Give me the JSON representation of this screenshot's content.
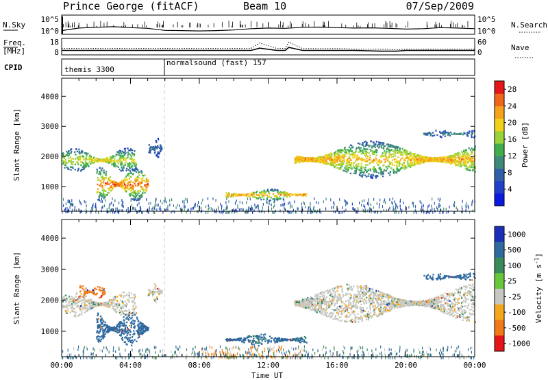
{
  "header": {
    "station": "Prince George (fitACF)",
    "beam": "Beam 10",
    "date": "07/Sep/2009"
  },
  "nsky_panel": {
    "left_label": "N.Sky",
    "right_label": "N.Search",
    "left_ticks": [
      "10^5",
      "10^0"
    ],
    "right_ticks": [
      "10^5",
      "10^0"
    ]
  },
  "freq_panel": {
    "left_label_1": "Freq.",
    "left_label_2": "[MHz]",
    "right_label": "Nave",
    "left_ticks": [
      "18",
      "8"
    ],
    "right_ticks": [
      "60",
      "0"
    ]
  },
  "cpid_panel": {
    "label": "CPID",
    "programs": [
      "themis 3300",
      "normalsound (fast) 157"
    ]
  },
  "power_panel": {
    "ylabel": "Slant Range [km]",
    "colorbar_label": "Power [dB]",
    "colorbar_ticks": [
      "28",
      "24",
      "20",
      "16",
      "12",
      "8",
      "4"
    ]
  },
  "velocity_panel": {
    "ylabel": "Slant Range [km]",
    "colorbar_label": "Velocity  [m s^-1]",
    "colorbar_ticks": [
      "1000",
      "500",
      "100",
      "25",
      "-25",
      "-100",
      "-500",
      "-1000"
    ]
  },
  "xaxis": {
    "label": "Time UT",
    "ticks": [
      "00:00",
      "04:00",
      "08:00",
      "12:00",
      "16:00",
      "20:00",
      "00:00"
    ]
  },
  "chart_data": [
    {
      "type": "heatmap",
      "title": "Power",
      "xlabel": "Time UT",
      "ylabel": "Slant Range [km]",
      "xlim_hours": [
        0,
        24
      ],
      "ylim_km": [
        180,
        4600
      ],
      "y_ticks": [
        1000,
        2000,
        3000,
        4000
      ],
      "colorbar": {
        "label": "Power [dB]",
        "range": [
          0,
          30
        ],
        "ticks": [
          4,
          8,
          12,
          16,
          20,
          24,
          28
        ]
      },
      "mode_change_hour": 6.0,
      "echo_regions": [
        {
          "t_start": 0.0,
          "t_end": 4.3,
          "range_start_km": 1500,
          "range_end_km": 2300,
          "peak_db": 22
        },
        {
          "t_start": 2.0,
          "t_end": 5.0,
          "range_start_km": 550,
          "range_end_km": 1650,
          "peak_db": 29
        },
        {
          "t_start": 5.0,
          "t_end": 5.8,
          "range_start_km": 1950,
          "range_end_km": 2650,
          "peak_db": 10
        },
        {
          "t_start": 9.5,
          "t_end": 14.2,
          "range_start_km": 550,
          "range_end_km": 950,
          "peak_db": 26
        },
        {
          "t_start": 13.5,
          "t_end": 24.0,
          "range_start_km": 1300,
          "range_end_km": 2550,
          "peak_db": 25
        },
        {
          "t_start": 21.0,
          "t_end": 24.0,
          "range_start_km": 2650,
          "range_end_km": 2900,
          "peak_db": 12
        },
        {
          "t_start": 0.0,
          "t_end": 24.0,
          "range_start_km": 180,
          "range_end_km": 650,
          "peak_db": 12
        }
      ]
    },
    {
      "type": "heatmap",
      "title": "Velocity",
      "xlabel": "Time UT",
      "ylabel": "Slant Range [km]",
      "xlim_hours": [
        0,
        24
      ],
      "ylim_km": [
        180,
        4600
      ],
      "y_ticks": [
        1000,
        2000,
        3000,
        4000
      ],
      "colorbar": {
        "label": "Velocity [m s^-1]",
        "levels": [
          1000,
          500,
          100,
          25,
          -25,
          -100,
          -500,
          -1000
        ]
      },
      "mode_change_hour": 6.0,
      "echo_regions": [
        {
          "t_start": 0.0,
          "t_end": 4.3,
          "range_start_km": 1500,
          "range_end_km": 2300,
          "velocity": 0
        },
        {
          "t_start": 1.0,
          "t_end": 2.5,
          "range_start_km": 2100,
          "range_end_km": 2500,
          "velocity": -300
        },
        {
          "t_start": 2.0,
          "t_end": 5.0,
          "range_start_km": 550,
          "range_end_km": 1650,
          "velocity": 150
        },
        {
          "t_start": 5.0,
          "t_end": 5.8,
          "range_start_km": 1950,
          "range_end_km": 2650,
          "velocity": 0
        },
        {
          "t_start": 9.5,
          "t_end": 14.2,
          "range_start_km": 550,
          "range_end_km": 950,
          "velocity": 120
        },
        {
          "t_start": 13.5,
          "t_end": 24.0,
          "range_start_km": 1300,
          "range_end_km": 2550,
          "velocity": 0
        },
        {
          "t_start": 21.0,
          "t_end": 24.0,
          "range_start_km": 2650,
          "range_end_km": 2900,
          "velocity": 200
        },
        {
          "t_start": 8.0,
          "t_end": 14.0,
          "range_start_km": 180,
          "range_end_km": 550,
          "velocity": -120
        },
        {
          "t_start": 0.0,
          "t_end": 24.0,
          "range_start_km": 180,
          "range_end_km": 550,
          "velocity": 100
        }
      ]
    },
    {
      "type": "line",
      "title": "N.Sky / N.Search",
      "y_scale": "log",
      "x_hours": [
        0,
        1,
        2,
        3,
        4,
        5,
        6,
        7,
        8,
        9,
        10,
        11,
        12,
        13,
        14,
        15,
        16,
        17,
        18,
        19,
        20,
        21,
        22,
        23,
        24
      ],
      "values": [
        5,
        30,
        50,
        80,
        40,
        25,
        6,
        5,
        4,
        5,
        8,
        20,
        30,
        25,
        50,
        60,
        40,
        30,
        35,
        25,
        15,
        20,
        40,
        30,
        20
      ]
    },
    {
      "type": "line",
      "title": "Freq. / Nave",
      "x_hours": [
        0,
        6,
        8,
        11,
        11.5,
        12.5,
        13,
        13.2,
        14,
        16.5,
        17,
        18.5,
        19.5,
        20,
        24
      ],
      "freq_mhz": [
        10.5,
        10.5,
        10.5,
        10.5,
        12.0,
        10.5,
        10.5,
        12.5,
        10.5,
        10.5,
        10.5,
        10.0,
        10.0,
        10.5,
        10.5
      ],
      "nave": [
        23,
        23,
        23,
        23,
        45,
        23,
        23,
        48,
        22,
        22,
        20,
        20,
        18,
        20,
        20
      ]
    },
    {
      "type": "table",
      "title": "CPID",
      "rows": [
        {
          "program": "themis 3300",
          "t_start": 0,
          "t_end": 6
        },
        {
          "program": "normalsound (fast) 157",
          "t_start": 6,
          "t_end": 24
        }
      ]
    }
  ]
}
